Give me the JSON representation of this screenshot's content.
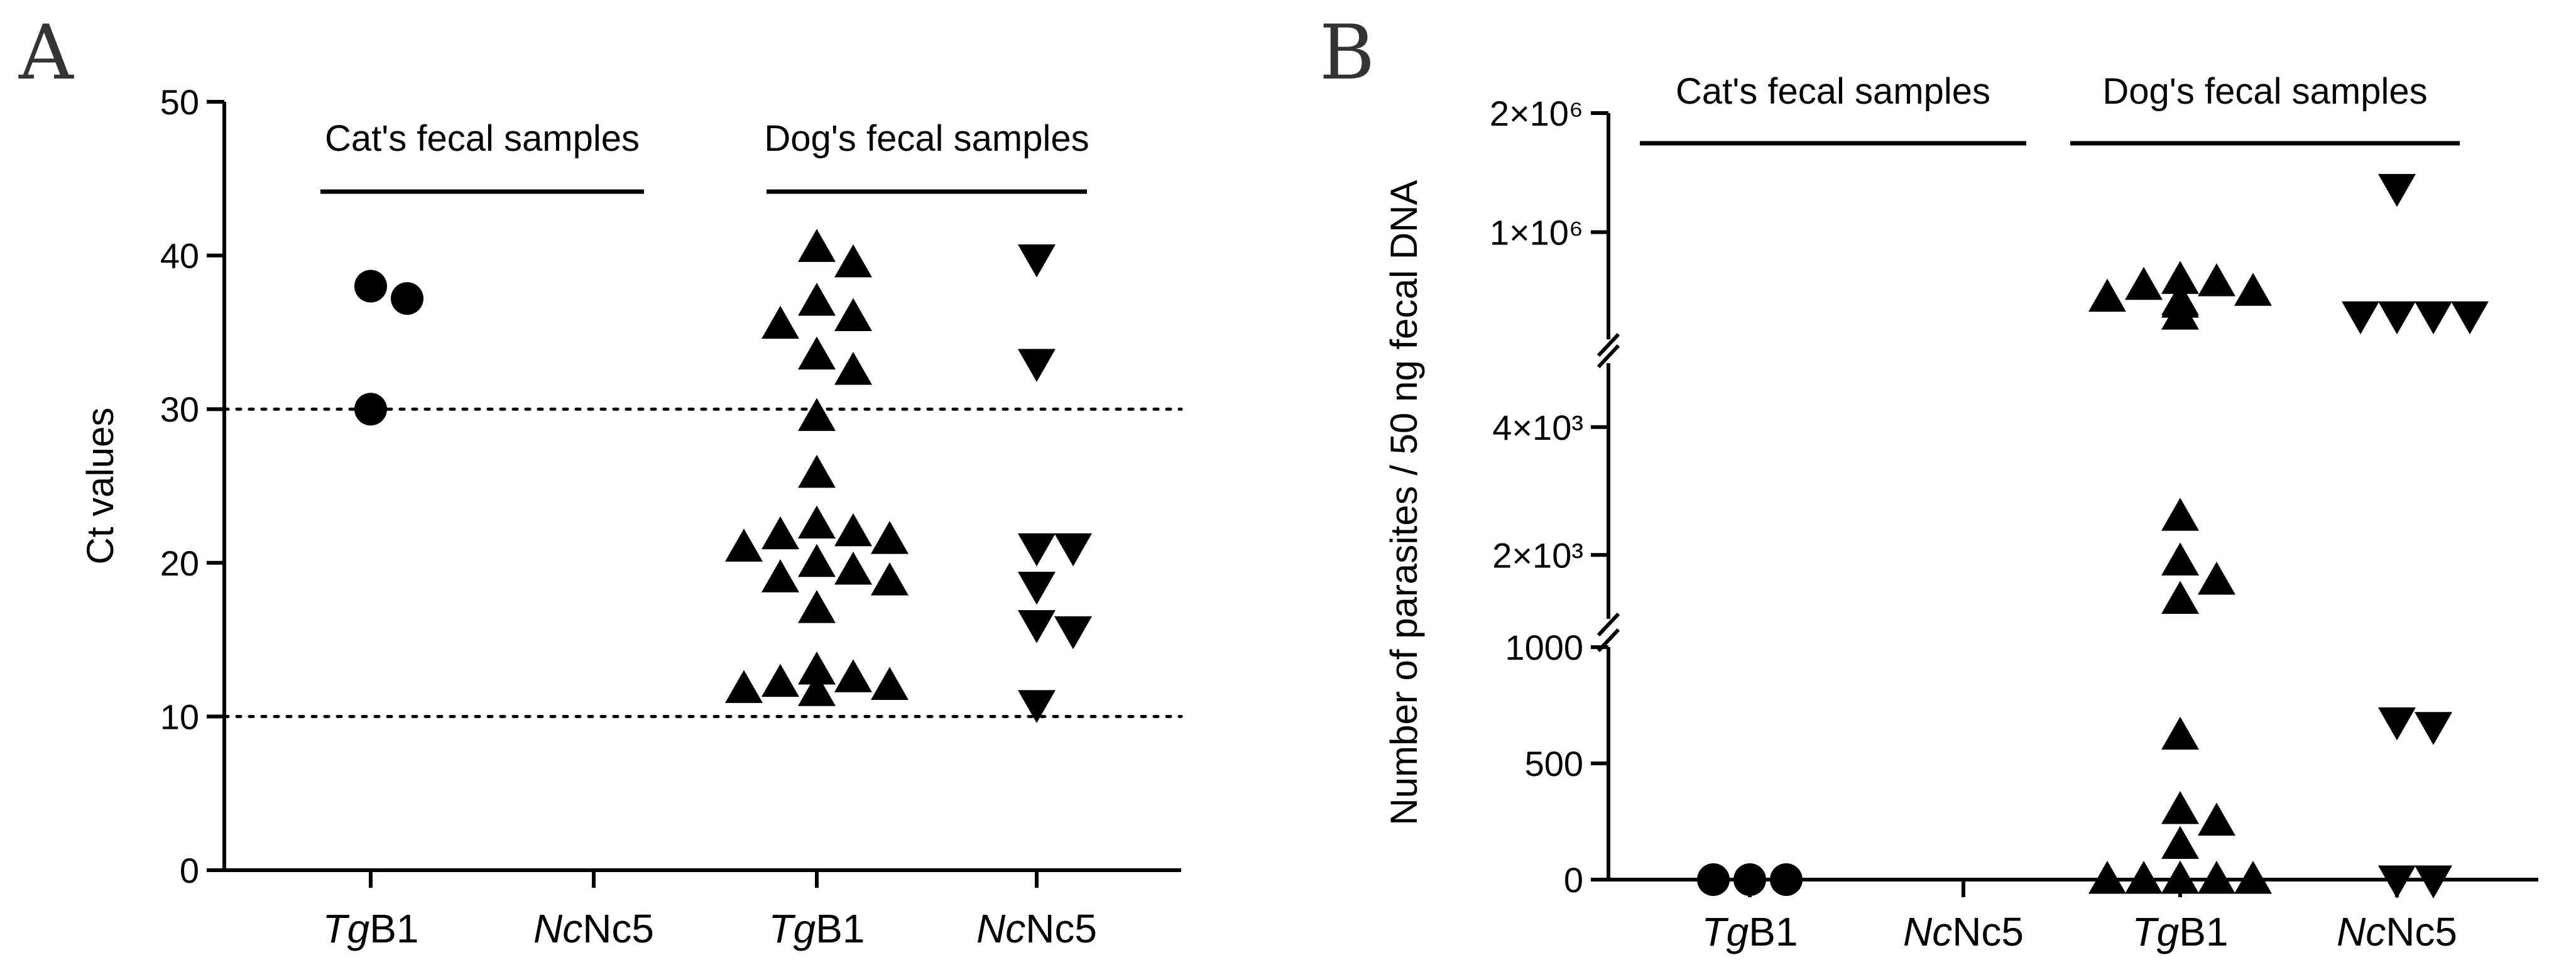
{
  "chart_data": [
    {
      "panel": "A",
      "type": "scatter",
      "ylabel": "Ct values",
      "ylim": [
        0,
        50
      ],
      "yticks": [
        0,
        10,
        20,
        30,
        40,
        50
      ],
      "categories": [
        {
          "italic": "Tg",
          "rest": "B1"
        },
        {
          "italic": "Nc",
          "rest": "Nc5"
        },
        {
          "italic": "Tg",
          "rest": "B1"
        },
        {
          "italic": "Nc",
          "rest": "Nc5"
        }
      ],
      "groups": [
        {
          "label": "Cat's fecal samples",
          "categories": [
            0,
            1
          ]
        },
        {
          "label": "Dog's fecal samples",
          "categories": [
            2,
            3
          ]
        }
      ],
      "thresholds": [
        30,
        10
      ],
      "series": [
        {
          "name": "Cat TgB1",
          "category": 0,
          "marker": "circle",
          "values": [
            38,
            37.2,
            30
          ]
        },
        {
          "name": "Cat NcNc5",
          "category": 1,
          "marker": "circle",
          "values": []
        },
        {
          "name": "Dog TgB1",
          "category": 2,
          "marker": "triangle-up",
          "values": [
            40.5,
            39.5,
            37,
            36,
            35.5,
            33.5,
            32.5,
            29.5,
            25.8,
            22.5,
            22,
            21.8,
            21.5,
            21,
            20,
            19.5,
            19,
            18.8,
            17,
            13,
            12.5,
            12.2,
            12,
            11.8,
            11.6
          ]
        },
        {
          "name": "Dog NcNc5",
          "category": 3,
          "marker": "triangle-down",
          "values": [
            39.8,
            33,
            21,
            21,
            18.5,
            16,
            15.6,
            10.8
          ]
        }
      ]
    },
    {
      "panel": "B",
      "type": "scatter",
      "ylabel": "Number of parasites / 50 ng fecal DNA",
      "yaxis_segments": [
        {
          "range": [
            0,
            1000
          ],
          "ticks": [
            {
              "v": 0,
              "label": "0"
            },
            {
              "v": 500,
              "label": "500"
            },
            {
              "v": 1000,
              "label": "1000"
            }
          ]
        },
        {
          "range": [
            1000,
            5000
          ],
          "ticks": [
            {
              "v": 2000,
              "label": "2×10³"
            },
            {
              "v": 4000,
              "label": "4×10³"
            }
          ]
        },
        {
          "range": [
            100000,
            2000000
          ],
          "ticks": [
            {
              "v": 1000000,
              "label": "1×10⁶"
            },
            {
              "v": 2000000,
              "label": "2×10⁶"
            }
          ]
        }
      ],
      "categories": [
        {
          "italic": "Tg",
          "rest": "B1"
        },
        {
          "italic": "Nc",
          "rest": "Nc5"
        },
        {
          "italic": "Tg",
          "rest": "B1"
        },
        {
          "italic": "Nc",
          "rest": "Nc5"
        }
      ],
      "groups": [
        {
          "label": "Cat's fecal samples",
          "categories": [
            0,
            1
          ]
        },
        {
          "label": "Dog's fecal samples",
          "categories": [
            2,
            3
          ]
        }
      ],
      "series": [
        {
          "name": "Cat TgB1",
          "category": 0,
          "marker": "circle",
          "values": [
            0,
            0,
            0
          ]
        },
        {
          "name": "Cat NcNc5",
          "category": 1,
          "marker": "circle",
          "values": []
        },
        {
          "name": "Dog TgB1",
          "category": 2,
          "marker": "triangle-up",
          "values": [
            600000,
            580000,
            550000,
            500000,
            450000,
            420000,
            400000,
            300000,
            2600,
            1900,
            1600,
            1300,
            620,
            300,
            250,
            150,
            0,
            0,
            0,
            0,
            0,
            0,
            0,
            0,
            0
          ]
        },
        {
          "name": "Dog NcNc5",
          "category": 3,
          "marker": "triangle-down",
          "values": [
            1370000,
            300000,
            300000,
            300000,
            300000,
            680,
            660,
            0,
            0
          ]
        }
      ]
    }
  ]
}
